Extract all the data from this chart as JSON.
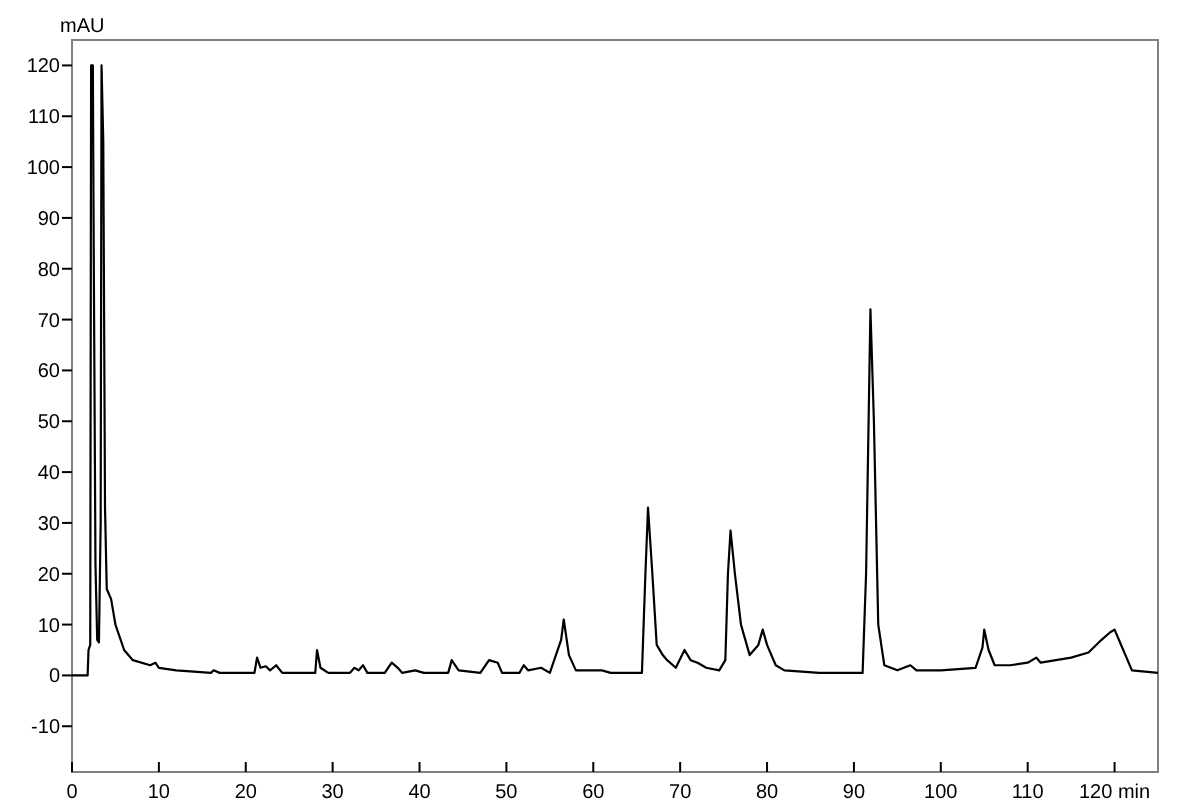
{
  "chart_data": {
    "type": "line",
    "ylabel": "mAU",
    "xlim": [
      0,
      125
    ],
    "ylim": [
      -19,
      125
    ],
    "xticks": [
      0,
      10,
      20,
      30,
      40,
      50,
      60,
      70,
      80,
      90,
      100,
      110,
      {
        "value": 120,
        "label": "120 min"
      }
    ],
    "yticks": [
      -10,
      0,
      10,
      20,
      30,
      40,
      50,
      60,
      70,
      80,
      90,
      100,
      110,
      120
    ],
    "marker": "none",
    "line_style": "solid",
    "series": [
      {
        "color": "#000000",
        "x": [
          0,
          1.8,
          1.9,
          2.1,
          2.2,
          2.4,
          2.5,
          2.7,
          2.9,
          3.1,
          3.3,
          3.4,
          3.6,
          3.8,
          4.0,
          4.5,
          5,
          6,
          7,
          9,
          9.6,
          10,
          12,
          16,
          16.3,
          17,
          21,
          21.3,
          21.7,
          22.3,
          22.8,
          23.5,
          24.2,
          28,
          28.2,
          28.6,
          29.5,
          32,
          32.5,
          33,
          33.5,
          34,
          36,
          36.8,
          37.5,
          38,
          39.5,
          40.5,
          43.3,
          43.7,
          44.5,
          47,
          48,
          49,
          49.5,
          51.5,
          52,
          52.5,
          54,
          55,
          55.5,
          56.3,
          56.6,
          57.2,
          58,
          59.5,
          61,
          62,
          65.6,
          66,
          66.3,
          66.8,
          67.3,
          68,
          68.5,
          69.5,
          70.5,
          71.2,
          72,
          73,
          74.5,
          75.2,
          75.5,
          75.8,
          76.3,
          77,
          78,
          79,
          79.5,
          80,
          81,
          82,
          86,
          91,
          91.4,
          91.9,
          92.3,
          92.8,
          93.5,
          95,
          96.5,
          97.2,
          100,
          104,
          104.8,
          105,
          105.5,
          106.2,
          108,
          110,
          111,
          111.5,
          115,
          117,
          118.5,
          119.5,
          120,
          121,
          122,
          125
        ],
        "values": [
          0,
          0,
          5,
          6,
          120,
          120,
          84,
          22,
          7,
          6.5,
          30,
          120,
          105,
          33,
          17,
          15,
          10,
          5,
          3,
          2,
          2.5,
          1.5,
          1,
          0.5,
          1,
          0.5,
          0.5,
          3.5,
          1.5,
          1.8,
          1,
          2,
          0.5,
          0.5,
          5,
          1.5,
          0.5,
          0.5,
          1.5,
          1,
          2,
          0.5,
          0.5,
          2.5,
          1.5,
          0.5,
          1,
          0.5,
          0.5,
          3,
          1,
          0.5,
          3,
          2.5,
          0.5,
          0.5,
          2,
          1,
          1.5,
          0.5,
          3,
          7,
          11,
          4,
          1,
          1,
          1,
          0.5,
          0.5,
          20,
          33,
          20,
          6,
          4,
          3,
          1.5,
          5,
          3,
          2.5,
          1.5,
          1,
          3,
          20,
          28.5,
          20,
          10,
          4,
          6,
          9,
          6,
          2,
          1,
          0.5,
          0.5,
          20,
          72,
          50,
          10,
          2,
          1,
          2,
          1,
          1,
          1.5,
          5.5,
          9,
          5,
          2,
          2,
          2.5,
          3.5,
          2.5,
          3.5,
          4.5,
          7,
          8.5,
          9,
          5,
          1,
          0.5
        ]
      }
    ]
  }
}
